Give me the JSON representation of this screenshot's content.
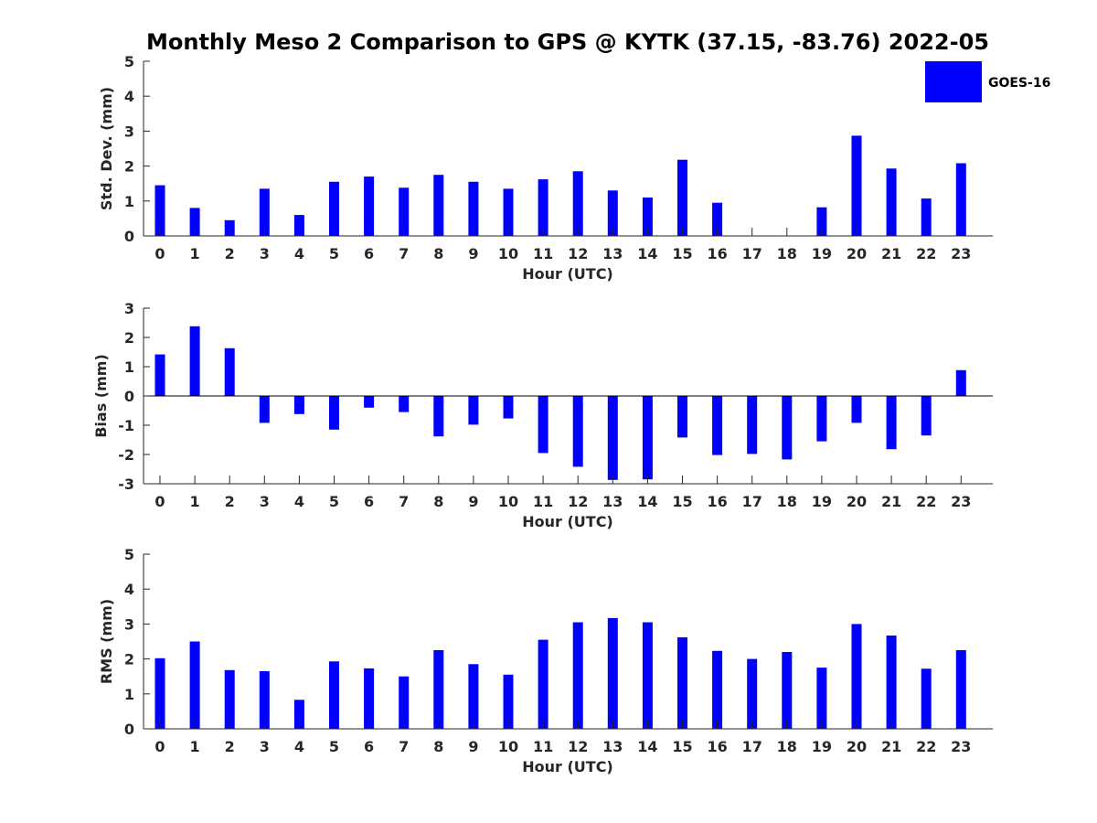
{
  "title": "Monthly Meso 2 Comparison to GPS @ KYTK (37.15, -83.76) 2022-05",
  "legend": {
    "label": "GOES-16",
    "color": "#0000ff"
  },
  "chart_data": [
    {
      "type": "bar",
      "ylabel": "Std. Dev. (mm)",
      "xlabel": "Hour (UTC)",
      "ylim": [
        0,
        5
      ],
      "yticks": [
        0,
        1,
        2,
        3,
        4,
        5
      ],
      "categories": [
        "0",
        "1",
        "2",
        "3",
        "4",
        "5",
        "6",
        "7",
        "8",
        "9",
        "10",
        "11",
        "12",
        "13",
        "14",
        "15",
        "16",
        "17",
        "18",
        "19",
        "20",
        "21",
        "22",
        "23"
      ],
      "series": [
        {
          "name": "GOES-16",
          "color": "#0000ff",
          "values": [
            1.45,
            0.8,
            0.45,
            1.35,
            0.6,
            1.55,
            1.7,
            1.38,
            1.75,
            1.55,
            1.35,
            1.62,
            1.85,
            1.3,
            1.1,
            2.18,
            0.95,
            0,
            0,
            0.82,
            2.87,
            1.93,
            1.07,
            2.08
          ]
        }
      ],
      "legend": "top-right"
    },
    {
      "type": "bar",
      "ylabel": "Bias (mm)",
      "xlabel": "Hour (UTC)",
      "ylim": [
        -3,
        3
      ],
      "yticks": [
        -3,
        -2,
        -1,
        0,
        1,
        2,
        3
      ],
      "categories": [
        "0",
        "1",
        "2",
        "3",
        "4",
        "5",
        "6",
        "7",
        "8",
        "9",
        "10",
        "11",
        "12",
        "13",
        "14",
        "15",
        "16",
        "17",
        "18",
        "19",
        "20",
        "21",
        "22",
        "23"
      ],
      "series": [
        {
          "name": "GOES-16",
          "color": "#0000ff",
          "values": [
            1.42,
            2.38,
            1.63,
            -0.92,
            -0.62,
            -1.15,
            -0.4,
            -0.55,
            -1.38,
            -0.98,
            -0.77,
            -1.95,
            -2.42,
            -2.87,
            -2.85,
            -1.42,
            -2.02,
            -1.98,
            -2.17,
            -1.55,
            -0.92,
            -1.82,
            -1.35,
            0.88
          ]
        }
      ]
    },
    {
      "type": "bar",
      "ylabel": "RMS (mm)",
      "xlabel": "Hour (UTC)",
      "ylim": [
        0,
        5
      ],
      "yticks": [
        0,
        1,
        2,
        3,
        4,
        5
      ],
      "categories": [
        "0",
        "1",
        "2",
        "3",
        "4",
        "5",
        "6",
        "7",
        "8",
        "9",
        "10",
        "11",
        "12",
        "13",
        "14",
        "15",
        "16",
        "17",
        "18",
        "19",
        "20",
        "21",
        "22",
        "23"
      ],
      "series": [
        {
          "name": "GOES-16",
          "color": "#0000ff",
          "values": [
            2.02,
            2.5,
            1.68,
            1.65,
            0.83,
            1.93,
            1.73,
            1.5,
            2.25,
            1.85,
            1.55,
            2.55,
            3.05,
            3.17,
            3.05,
            2.62,
            2.23,
            2.0,
            2.2,
            1.75,
            3.0,
            2.67,
            1.72,
            2.25
          ]
        }
      ]
    }
  ]
}
